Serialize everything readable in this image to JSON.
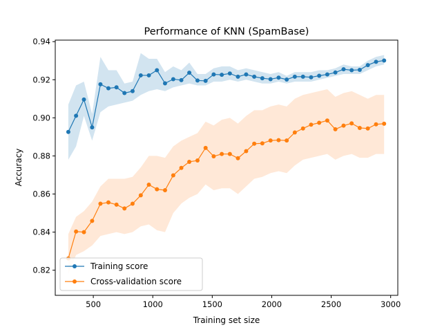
{
  "chart_data": {
    "type": "line",
    "title": "Performance of KNN (SpamBase)",
    "xlabel": "Training set size",
    "ylabel": "Accuracy",
    "xlim": [
      180,
      3060
    ],
    "ylim": [
      0.8068,
      0.9408
    ],
    "xticks": [
      500,
      1000,
      1500,
      2000,
      2500,
      3000
    ],
    "yticks": [
      0.82,
      0.84,
      0.86,
      0.88,
      0.9,
      0.92,
      0.94
    ],
    "ytick_labels": [
      "0.82",
      "0.84",
      "0.86",
      "0.88",
      "0.90",
      "0.92",
      "0.94"
    ],
    "legend_position": "lower-left",
    "x": [
      290,
      355,
      421,
      490,
      560,
      627,
      695,
      762,
      830,
      899,
      967,
      1035,
      1103,
      1172,
      1240,
      1307,
      1376,
      1444,
      1512,
      1580,
      1648,
      1716,
      1785,
      1853,
      1921,
      1990,
      2058,
      2126,
      2194,
      2263,
      2331,
      2399,
      2467,
      2535,
      2604,
      2672,
      2740,
      2808,
      2877,
      2945
    ],
    "series": [
      {
        "name": "Training score",
        "color": "#1f77b4",
        "fill_color": "#1f77b4",
        "values": [
          0.8926,
          0.9011,
          0.9096,
          0.895,
          0.9176,
          0.9155,
          0.916,
          0.913,
          0.914,
          0.9223,
          0.9223,
          0.925,
          0.9181,
          0.9203,
          0.9198,
          0.9237,
          0.9196,
          0.9194,
          0.9228,
          0.9226,
          0.9233,
          0.9216,
          0.9228,
          0.9216,
          0.9208,
          0.9203,
          0.9211,
          0.9201,
          0.9216,
          0.9216,
          0.9213,
          0.9221,
          0.9228,
          0.9238,
          0.9255,
          0.925,
          0.9252,
          0.9277,
          0.9294,
          0.9301
        ],
        "lower": [
          0.878,
          0.885,
          0.901,
          0.888,
          0.903,
          0.906,
          0.907,
          0.908,
          0.909,
          0.912,
          0.914,
          0.915,
          0.914,
          0.916,
          0.917,
          0.918,
          0.917,
          0.917,
          0.919,
          0.919,
          0.92,
          0.919,
          0.92,
          0.919,
          0.918,
          0.918,
          0.919,
          0.918,
          0.919,
          0.919,
          0.919,
          0.92,
          0.921,
          0.922,
          0.923,
          0.923,
          0.923,
          0.925,
          0.927,
          0.928
        ],
        "upper": [
          0.907,
          0.917,
          0.919,
          0.902,
          0.932,
          0.925,
          0.925,
          0.918,
          0.919,
          0.934,
          0.931,
          0.931,
          0.924,
          0.927,
          0.925,
          0.929,
          0.923,
          0.923,
          0.926,
          0.927,
          0.927,
          0.925,
          0.926,
          0.925,
          0.924,
          0.923,
          0.924,
          0.922,
          0.924,
          0.924,
          0.924,
          0.925,
          0.925,
          0.926,
          0.928,
          0.927,
          0.927,
          0.93,
          0.932,
          0.933
        ]
      },
      {
        "name": "Cross-validation score",
        "color": "#ff7f0e",
        "fill_color": "#ffb27a",
        "values": [
          0.8262,
          0.8403,
          0.84,
          0.8459,
          0.8549,
          0.8556,
          0.8544,
          0.8524,
          0.8549,
          0.8593,
          0.8649,
          0.8625,
          0.862,
          0.8698,
          0.8737,
          0.8769,
          0.8776,
          0.8842,
          0.8798,
          0.881,
          0.881,
          0.8788,
          0.8825,
          0.8864,
          0.8866,
          0.8881,
          0.8883,
          0.8881,
          0.8923,
          0.8944,
          0.8964,
          0.8974,
          0.8986,
          0.894,
          0.8959,
          0.8971,
          0.8947,
          0.8944,
          0.8966,
          0.8969
        ],
        "lower": [
          0.818,
          0.828,
          0.83,
          0.833,
          0.838,
          0.839,
          0.84,
          0.839,
          0.84,
          0.843,
          0.844,
          0.841,
          0.84,
          0.85,
          0.855,
          0.858,
          0.86,
          0.865,
          0.862,
          0.863,
          0.863,
          0.86,
          0.864,
          0.868,
          0.869,
          0.871,
          0.872,
          0.871,
          0.875,
          0.878,
          0.879,
          0.88,
          0.881,
          0.878,
          0.88,
          0.881,
          0.879,
          0.879,
          0.881,
          0.881
        ],
        "upper": [
          0.839,
          0.848,
          0.851,
          0.856,
          0.864,
          0.868,
          0.868,
          0.868,
          0.869,
          0.874,
          0.88,
          0.88,
          0.879,
          0.885,
          0.888,
          0.89,
          0.892,
          0.898,
          0.896,
          0.899,
          0.9,
          0.897,
          0.901,
          0.904,
          0.904,
          0.906,
          0.907,
          0.906,
          0.91,
          0.912,
          0.913,
          0.914,
          0.915,
          0.911,
          0.913,
          0.914,
          0.912,
          0.91,
          0.912,
          0.912
        ]
      }
    ]
  }
}
